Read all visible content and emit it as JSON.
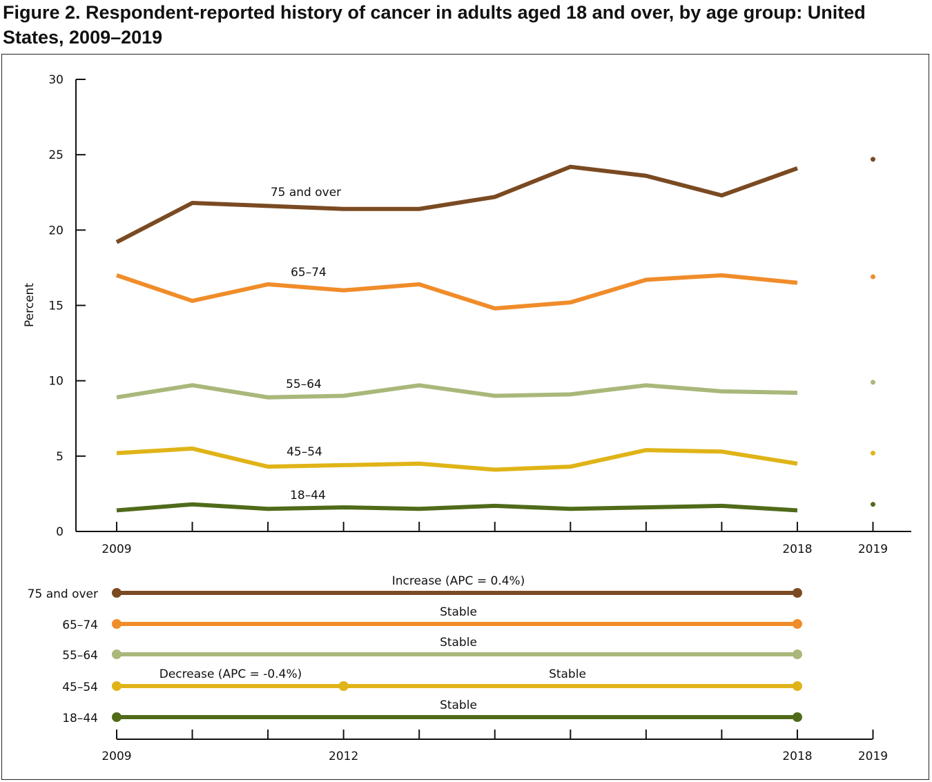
{
  "title": "Figure 2. Respondent-reported history of cancer in adults aged 18 and over, by age group: United States, 2009–2019",
  "chart_data": [
    {
      "type": "line",
      "ylabel": "Percent",
      "ylim": [
        0,
        30
      ],
      "yticks": [
        0,
        5,
        10,
        15,
        20,
        25,
        30
      ],
      "x": [
        2009,
        2010,
        2011,
        2012,
        2013,
        2014,
        2015,
        2016,
        2017,
        2018,
        2019
      ],
      "xtick_labels": [
        "2009",
        "2018",
        "2019"
      ],
      "grid": false,
      "note_2019": "2019 shown as separate point only",
      "series": [
        {
          "name": "75 and over",
          "color": "#7a4a22",
          "values": [
            19.2,
            21.8,
            21.6,
            21.4,
            21.4,
            22.2,
            24.2,
            23.6,
            22.3,
            24.1,
            24.7
          ]
        },
        {
          "name": "65–74",
          "color": "#f08c2a",
          "values": [
            17.0,
            15.3,
            16.4,
            16.0,
            16.4,
            14.8,
            15.2,
            16.7,
            17.0,
            16.5,
            16.9
          ]
        },
        {
          "name": "55–64",
          "color": "#a9b87a",
          "values": [
            8.9,
            9.7,
            8.9,
            9.0,
            9.7,
            9.0,
            9.1,
            9.7,
            9.3,
            9.2,
            9.9
          ]
        },
        {
          "name": "45–54",
          "color": "#e0b418",
          "values": [
            5.2,
            5.5,
            4.3,
            4.4,
            4.5,
            4.1,
            4.3,
            5.4,
            5.3,
            4.5,
            5.2
          ]
        },
        {
          "name": "18–44",
          "color": "#4f6b1a",
          "values": [
            1.4,
            1.8,
            1.5,
            1.6,
            1.5,
            1.7,
            1.5,
            1.6,
            1.7,
            1.4,
            1.8
          ]
        }
      ]
    },
    {
      "type": "trend-segments",
      "xtick_labels": [
        "2009",
        "2012",
        "2018",
        "2019"
      ],
      "rows": [
        {
          "name": "75 and over",
          "color": "#7a4a22",
          "segments": [
            {
              "from": 2009,
              "to": 2018,
              "label": "Increase (APC = 0.4%)"
            }
          ]
        },
        {
          "name": "65–74",
          "color": "#f08c2a",
          "segments": [
            {
              "from": 2009,
              "to": 2018,
              "label": "Stable"
            }
          ]
        },
        {
          "name": "55–64",
          "color": "#a9b87a",
          "segments": [
            {
              "from": 2009,
              "to": 2018,
              "label": "Stable"
            }
          ]
        },
        {
          "name": "45–54",
          "color": "#e0b418",
          "segments": [
            {
              "from": 2009,
              "to": 2012,
              "label": "Decrease (APC = -0.4%)"
            },
            {
              "from": 2012,
              "to": 2018,
              "label": "Stable"
            }
          ]
        },
        {
          "name": "18–44",
          "color": "#4f6b1a",
          "segments": [
            {
              "from": 2009,
              "to": 2018,
              "label": "Stable"
            }
          ]
        }
      ]
    }
  ]
}
